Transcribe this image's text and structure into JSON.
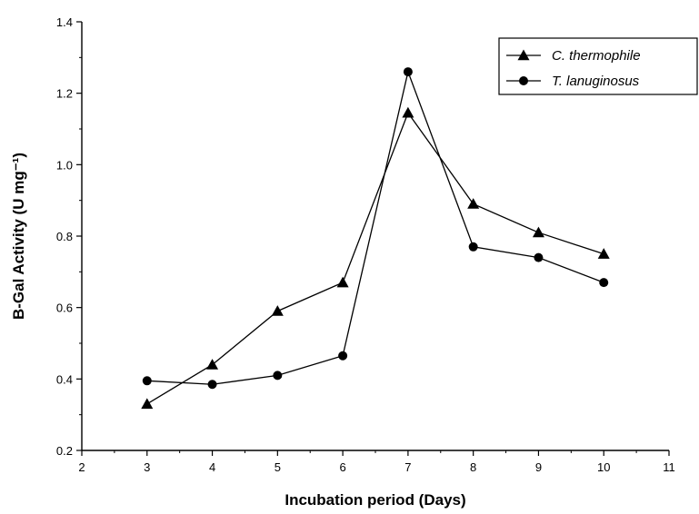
{
  "chart_data": {
    "type": "line",
    "xlabel": "Incubation period (Days)",
    "ylabel": "B-Gal Activity (U mg⁻¹)",
    "xlim": [
      2,
      11
    ],
    "ylim": [
      0.2,
      1.4
    ],
    "xticks": [
      2,
      3,
      4,
      5,
      6,
      7,
      8,
      9,
      10,
      11
    ],
    "yticks": [
      "0.2",
      "0.4",
      "0.6",
      "0.8",
      "1.0",
      "1.2",
      "1.4"
    ],
    "grid": false,
    "legend_position": "top-right",
    "x": [
      3,
      4,
      5,
      6,
      7,
      8,
      9,
      10
    ],
    "series": [
      {
        "name": "C. thermophile",
        "marker": "triangle",
        "color": "#000000",
        "values": [
          0.33,
          0.44,
          0.59,
          0.67,
          1.145,
          0.89,
          0.81,
          0.75
        ]
      },
      {
        "name": "T. lanuginosus",
        "marker": "circle",
        "color": "#000000",
        "values": [
          0.395,
          0.385,
          0.41,
          0.465,
          1.26,
          0.77,
          0.74,
          0.67
        ]
      }
    ]
  }
}
